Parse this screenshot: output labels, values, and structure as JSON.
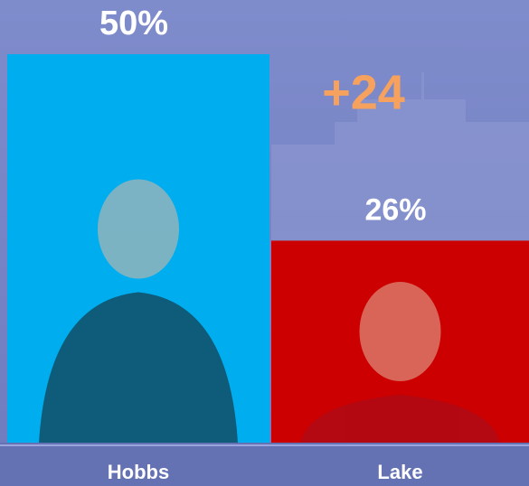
{
  "chart_data": {
    "type": "bar",
    "categories": [
      "Hobbs",
      "Lake"
    ],
    "values": [
      50,
      26
    ],
    "value_labels": [
      "50%",
      "26%"
    ],
    "colors": [
      "#00aeef",
      "#cc0000"
    ],
    "annotation": "+24"
  }
}
